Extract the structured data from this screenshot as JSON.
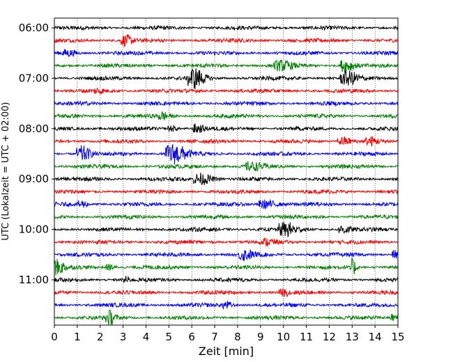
{
  "chart_data": {
    "type": "line",
    "title": "",
    "xlabel": "Zeit  [min]",
    "ylabel": "UTC (Lokalzeit = UTC + 02:00)",
    "xlim": [
      0,
      15
    ],
    "xticks": [
      0,
      1,
      2,
      3,
      4,
      5,
      6,
      7,
      8,
      9,
      10,
      11,
      12,
      13,
      14,
      15
    ],
    "grid": "vertical dotted lines at each minute",
    "row_interval_minutes": 15,
    "start_time": "06:00",
    "yticks": [
      "06:00",
      "07:00",
      "08:00",
      "09:00",
      "10:00",
      "11:00"
    ],
    "series_colors": [
      "#000000",
      "#ff0000",
      "#0000ff",
      "#008000"
    ],
    "traces": [
      {
        "time": "06:00",
        "color": "#000000",
        "noise": 3,
        "events": []
      },
      {
        "time": "06:15",
        "color": "#ff0000",
        "noise": 3,
        "events": [
          {
            "t": 3.1,
            "amp": 7,
            "dur": 0.5
          }
        ]
      },
      {
        "time": "06:30",
        "color": "#0000ff",
        "noise": 3,
        "events": [
          {
            "t": 0.6,
            "amp": 4,
            "dur": 0.6
          }
        ]
      },
      {
        "time": "06:45",
        "color": "#008000",
        "noise": 3,
        "events": [
          {
            "t": 9.9,
            "amp": 6,
            "dur": 0.8
          },
          {
            "t": 12.7,
            "amp": 9,
            "dur": 0.6
          }
        ]
      },
      {
        "time": "07:00",
        "color": "#000000",
        "noise": 3,
        "events": [
          {
            "t": 6.1,
            "amp": 14,
            "dur": 0.7
          },
          {
            "t": 12.8,
            "amp": 9,
            "dur": 0.8
          }
        ]
      },
      {
        "time": "07:15",
        "color": "#ff0000",
        "noise": 3,
        "events": [
          {
            "t": 1.9,
            "amp": 3,
            "dur": 0.4
          }
        ]
      },
      {
        "time": "07:30",
        "color": "#0000ff",
        "noise": 3,
        "events": []
      },
      {
        "time": "07:45",
        "color": "#008000",
        "noise": 3,
        "events": [
          {
            "t": 4.7,
            "amp": 5,
            "dur": 0.5
          }
        ]
      },
      {
        "time": "08:00",
        "color": "#000000",
        "noise": 3,
        "events": [
          {
            "t": 6.2,
            "amp": 6,
            "dur": 0.5
          },
          {
            "t": 5.1,
            "amp": 4,
            "dur": 0.4
          }
        ]
      },
      {
        "time": "08:15",
        "color": "#ff0000",
        "noise": 3,
        "events": [
          {
            "t": 12.6,
            "amp": 6,
            "dur": 0.6
          },
          {
            "t": 13.8,
            "amp": 5,
            "dur": 0.5
          }
        ]
      },
      {
        "time": "08:30",
        "color": "#0000ff",
        "noise": 3,
        "events": [
          {
            "t": 1.2,
            "amp": 11,
            "dur": 0.6
          },
          {
            "t": 5.2,
            "amp": 14,
            "dur": 0.9
          }
        ]
      },
      {
        "time": "08:45",
        "color": "#008000",
        "noise": 3,
        "events": [
          {
            "t": 8.6,
            "amp": 5,
            "dur": 0.8
          }
        ]
      },
      {
        "time": "09:00",
        "color": "#000000",
        "noise": 3,
        "events": [
          {
            "t": 6.4,
            "amp": 8,
            "dur": 0.8
          }
        ]
      },
      {
        "time": "09:15",
        "color": "#ff0000",
        "noise": 3,
        "events": []
      },
      {
        "time": "09:30",
        "color": "#0000ff",
        "noise": 3,
        "events": [
          {
            "t": 1.2,
            "amp": 5,
            "dur": 0.4
          },
          {
            "t": 9.2,
            "amp": 6,
            "dur": 0.8
          }
        ]
      },
      {
        "time": "09:45",
        "color": "#008000",
        "noise": 3,
        "events": []
      },
      {
        "time": "10:00",
        "color": "#000000",
        "noise": 3,
        "events": [
          {
            "t": 10.1,
            "amp": 9,
            "dur": 0.8
          },
          {
            "t": 12.6,
            "amp": 6,
            "dur": 0.5
          }
        ]
      },
      {
        "time": "10:15",
        "color": "#ff0000",
        "noise": 3,
        "events": [
          {
            "t": 9.3,
            "amp": 4,
            "dur": 0.5
          }
        ]
      },
      {
        "time": "10:30",
        "color": "#0000ff",
        "noise": 3,
        "events": [
          {
            "t": 8.3,
            "amp": 7,
            "dur": 0.6
          },
          {
            "t": 14.9,
            "amp": 6,
            "dur": 0.4
          }
        ]
      },
      {
        "time": "10:45",
        "color": "#008000",
        "noise": 3,
        "events": [
          {
            "t": 0.1,
            "amp": 10,
            "dur": 0.6
          },
          {
            "t": 2.4,
            "amp": 4,
            "dur": 0.4
          },
          {
            "t": 13.0,
            "amp": 12,
            "dur": 0.3
          }
        ]
      },
      {
        "time": "11:00",
        "color": "#000000",
        "noise": 3,
        "events": [
          {
            "t": 3.1,
            "amp": 7,
            "dur": 0.2
          }
        ]
      },
      {
        "time": "11:15",
        "color": "#ff0000",
        "noise": 3,
        "events": [
          {
            "t": 10.0,
            "amp": 4,
            "dur": 0.5
          }
        ]
      },
      {
        "time": "11:30",
        "color": "#0000ff",
        "noise": 3,
        "events": [
          {
            "t": 7.5,
            "amp": 5,
            "dur": 0.4
          }
        ]
      },
      {
        "time": "11:45",
        "color": "#008000",
        "noise": 3,
        "events": [
          {
            "t": 2.4,
            "amp": 9,
            "dur": 0.4
          },
          {
            "t": 14.8,
            "amp": 5,
            "dur": 0.3
          }
        ]
      }
    ]
  }
}
